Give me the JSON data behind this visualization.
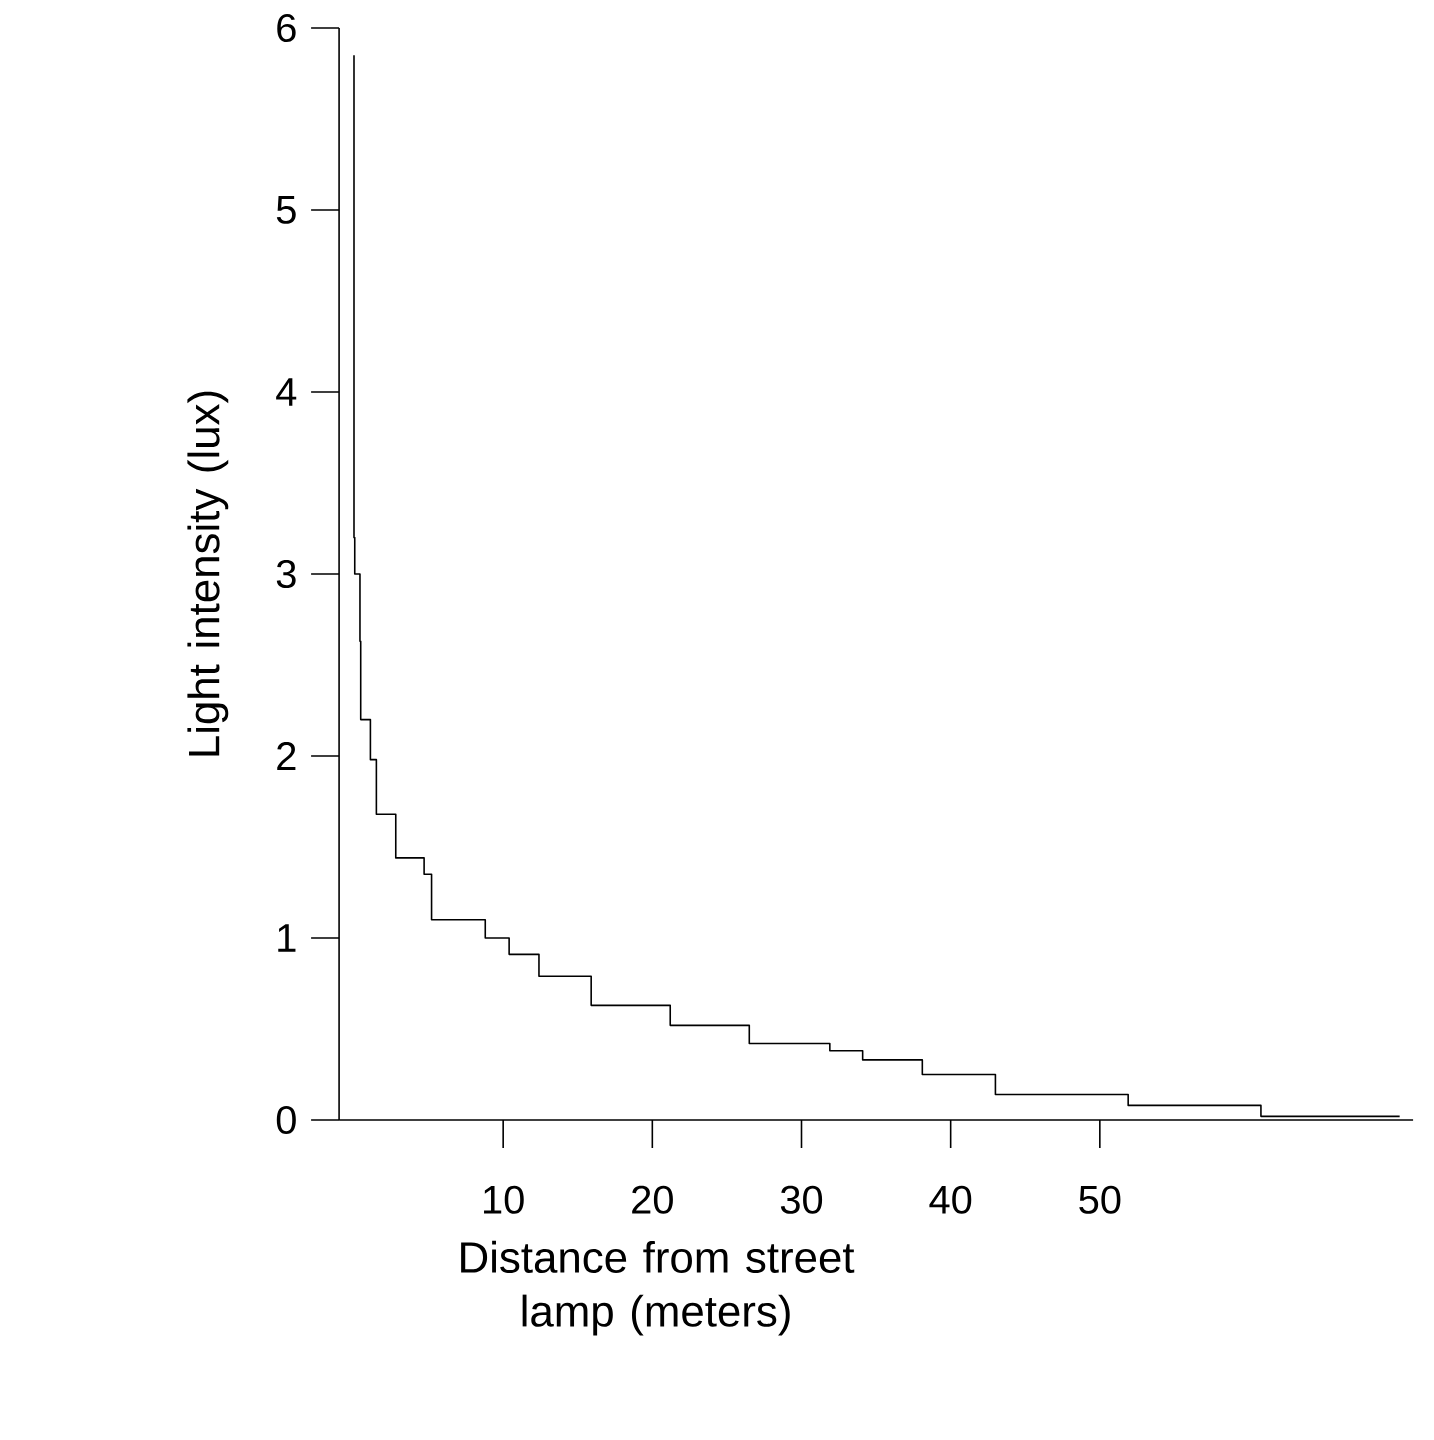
{
  "chart_data": {
    "type": "step",
    "xlabel": "Distance from street lamp (meters)",
    "ylabel": "Light intensity (lux)",
    "x": [
      0,
      0.05,
      0.4,
      0.45,
      1.1,
      1.5,
      2.8,
      4.7,
      5.2,
      8.8,
      10.4,
      12.4,
      15.9,
      21.2,
      26.5,
      31.9,
      34.1,
      38.1,
      43,
      51.9,
      60.8,
      70.1
    ],
    "values": [
      5.85,
      3.2,
      3.0,
      2.63,
      2.2,
      1.98,
      1.68,
      1.44,
      1.35,
      1.1,
      1.0,
      0.91,
      0.79,
      0.63,
      0.52,
      0.42,
      0.38,
      0.33,
      0.25,
      0.14,
      0.08,
      0.02
    ],
    "color": "#000000",
    "xlim": [
      -1,
      71
    ],
    "ylim": [
      0,
      6
    ],
    "xticks": [
      10,
      20,
      30,
      40,
      50
    ],
    "yticks": [
      0,
      1,
      2,
      3,
      4,
      5,
      6
    ],
    "grid": false,
    "marker": "none",
    "line_style": "solid"
  }
}
